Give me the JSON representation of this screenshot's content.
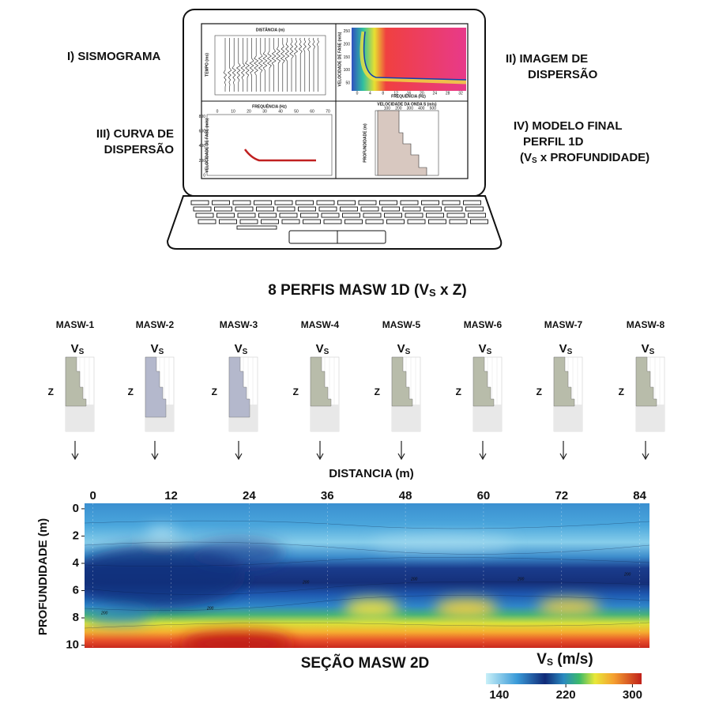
{
  "laptop": {
    "labels": {
      "sismograma": "I) SISMOGRAMA",
      "imagem": [
        "II) IMAGEM DE",
        "DISPERSÃO"
      ],
      "curva": [
        "III) CURVA DE",
        "DISPERSÃO"
      ],
      "modelo": [
        "IV) MODELO FINAL",
        "PERFIL 1D",
        "(V",
        "S",
        " x PROFUNDIDADE)"
      ]
    },
    "panels": {
      "seismogram": {
        "title": "DISTÂNCIA (m)",
        "ylabel": "TEMPO (ms)"
      },
      "dispersion_image": {
        "xlabel": "FREQUÊNCIA (Hz)",
        "ylabel": "VELOCIDADE DE FASE (m/s)",
        "xlim": [
          -1.7,
          33.7
        ],
        "xticks": [
          0,
          4,
          8,
          12,
          16,
          20,
          24,
          28,
          32
        ],
        "ylim": [
          20,
          265
        ],
        "yticks": [
          50,
          100,
          150,
          200,
          250
        ]
      },
      "dispersion_curve": {
        "title": "FREQUÊNCIA (Hz)",
        "ylabel": "VELOCIDADE DE FASE (m/s)",
        "xlim": [
          -6.5,
          72.5
        ],
        "xticks": [
          0,
          10,
          20,
          30,
          40,
          50,
          60,
          70
        ],
        "ylim": [
          0,
          830
        ],
        "yticks": [
          0,
          200,
          400,
          600,
          800
        ]
      },
      "model": {
        "title": "VELOCIDADE DA ONDA S (m/s)",
        "ylabel": "PROFUNDIDADE (m)",
        "xlim": [
          -3,
          550
        ],
        "xticks": [
          100,
          200,
          300,
          400,
          500
        ]
      }
    }
  },
  "profiles": {
    "title": [
      "8 PERFIS MASW 1D  (V",
      "S",
      " x Z)"
    ],
    "vs": [
      "V",
      "S"
    ],
    "z": "Z",
    "names": [
      "MASW-1",
      "MASW-2",
      "MASW-3",
      "MASW-4",
      "MASW-5",
      "MASW-6",
      "MASW-7",
      "MASW-8"
    ]
  },
  "section": {
    "title": "SEÇÃO MASW 2D",
    "xlabel": "DISTANCIA (m)",
    "ylabel": "PROFUNDIDADE (m)",
    "xlim": [
      -1.3,
      85.5
    ],
    "xticks": [
      0,
      12,
      24,
      36,
      48,
      60,
      72,
      84
    ],
    "ylim": [
      -0.4,
      10.2
    ],
    "yticks": [
      0,
      2,
      4,
      6,
      8,
      10
    ],
    "contour_label": "200",
    "colorbar": {
      "label": [
        "V",
        "S",
        " (m/s)"
      ],
      "lim": [
        124,
        311
      ],
      "ticks": [
        140,
        220,
        300
      ]
    }
  }
}
